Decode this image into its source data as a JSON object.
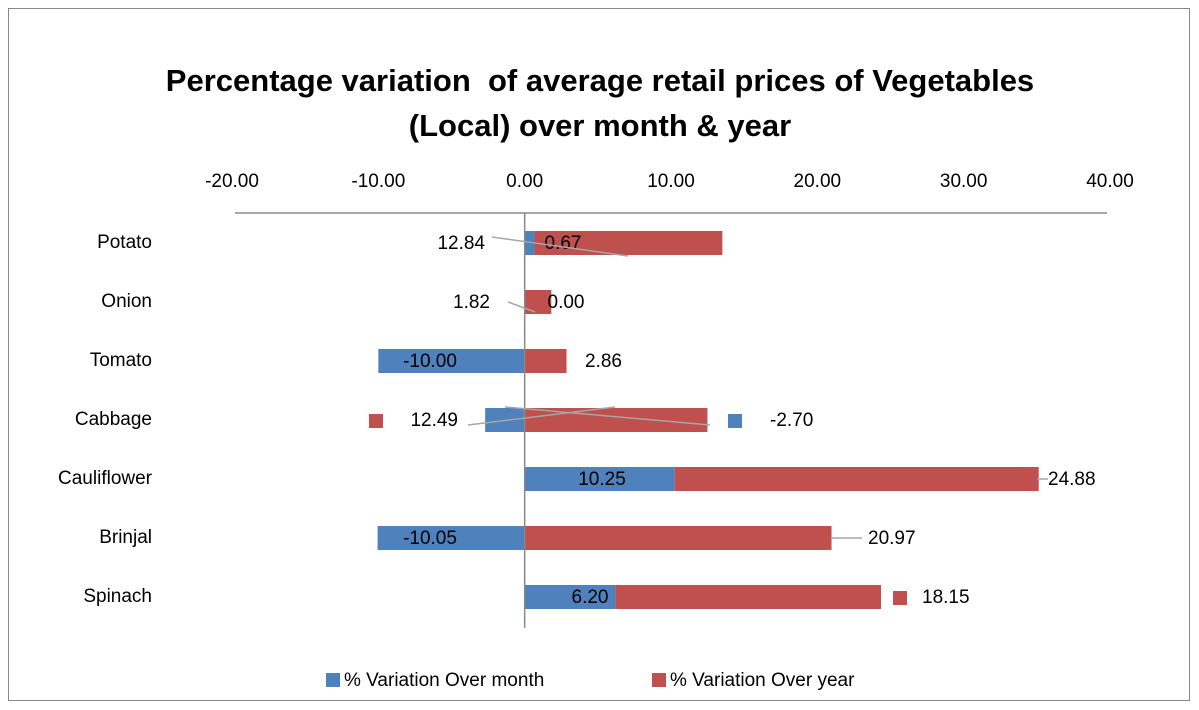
{
  "chart_data": {
    "type": "stacked-barh",
    "title": "Percentage variation  of average retail prices of Vegetables (Local) over month & year",
    "categories": [
      "Potato",
      "Onion",
      "Tomato",
      "Cabbage",
      "Cauliflower",
      "Brinjal",
      "Spinach"
    ],
    "series": [
      {
        "name": "% Variation Over month",
        "color": "#4f81bd",
        "values": [
          0.67,
          0,
          -10,
          -2.7,
          10.25,
          -10.05,
          6.2
        ],
        "value_labels": [
          "0.67",
          "0.00",
          "-10.00",
          "-2.70",
          "10.25",
          "-10.05",
          "6.20"
        ]
      },
      {
        "name": "% Variation Over year",
        "color": "#c0504d",
        "values": [
          12.84,
          1.82,
          2.86,
          12.49,
          24.88,
          20.97,
          18.15
        ],
        "value_labels": [
          "12.84",
          "1.82",
          "2.86",
          "12.49",
          "24.88",
          "20.97",
          "18.15"
        ]
      }
    ],
    "xlim": [
      -20,
      40
    ],
    "xticks": [
      {
        "value": -20,
        "label": "-20.00"
      },
      {
        "value": -10,
        "label": "-10.00"
      },
      {
        "value": 0,
        "label": "0.00"
      },
      {
        "value": 10,
        "label": "10.00"
      },
      {
        "value": 20,
        "label": "20.00"
      },
      {
        "value": 30,
        "label": "30.00"
      },
      {
        "value": 40,
        "label": "40.00"
      }
    ],
    "legend": "bottom"
  }
}
